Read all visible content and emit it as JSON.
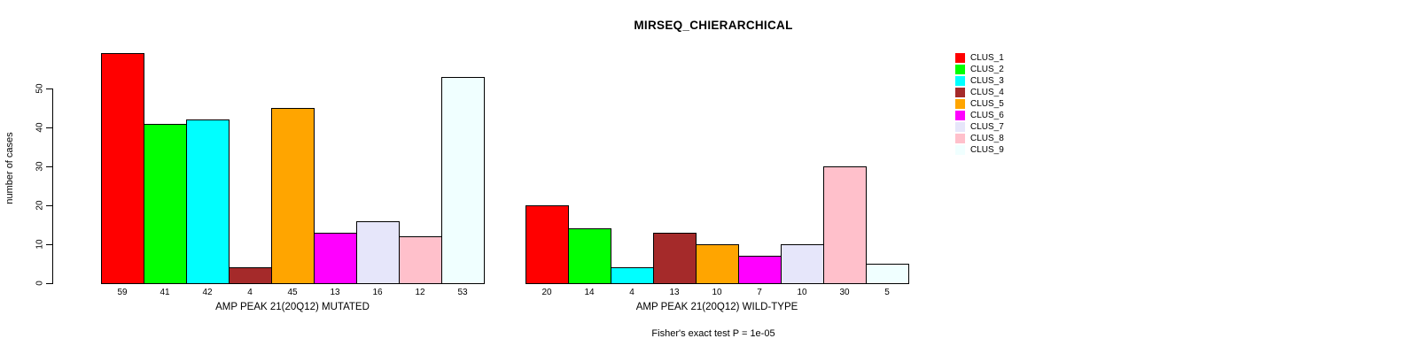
{
  "title": "MIRSEQ_CHIERARCHICAL",
  "chart_data": {
    "type": "bar",
    "title": "MIRSEQ_CHIERARCHICAL",
    "ylabel": "number of cases",
    "xlabel": "",
    "ylim": [
      0,
      50
    ],
    "yticks": [
      0,
      10,
      20,
      30,
      40,
      50
    ],
    "grid": false,
    "legend_position": "right",
    "clusters": [
      {
        "name": "CLUS_1",
        "color": "#FF0000"
      },
      {
        "name": "CLUS_2",
        "color": "#00FF00"
      },
      {
        "name": "CLUS_3",
        "color": "#00FFFF"
      },
      {
        "name": "CLUS_4",
        "color": "#A52A2A"
      },
      {
        "name": "CLUS_5",
        "color": "#FFA500"
      },
      {
        "name": "CLUS_6",
        "color": "#FF00FF"
      },
      {
        "name": "CLUS_7",
        "color": "#E6E6FA"
      },
      {
        "name": "CLUS_8",
        "color": "#FFC0CB"
      },
      {
        "name": "CLUS_9",
        "color": "#F0FFFF"
      }
    ],
    "groups": [
      {
        "xlabel": "AMP PEAK 21(20Q12) MUTATED",
        "categories": [
          "CLUS_1",
          "CLUS_2",
          "CLUS_3",
          "CLUS_4",
          "CLUS_5",
          "CLUS_6",
          "CLUS_7",
          "CLUS_8",
          "CLUS_9"
        ],
        "values": [
          59,
          41,
          42,
          4,
          45,
          13,
          16,
          12,
          53
        ],
        "bar_labels": [
          "59",
          "41",
          "42",
          "4",
          "45",
          "13",
          "16",
          "12",
          "53"
        ]
      },
      {
        "xlabel": "AMP PEAK 21(20Q12) WILD-TYPE",
        "categories": [
          "CLUS_1",
          "CLUS_2",
          "CLUS_3",
          "CLUS_4",
          "CLUS_5",
          "CLUS_6",
          "CLUS_7",
          "CLUS_8",
          "CLUS_9"
        ],
        "values": [
          20,
          14,
          4,
          13,
          10,
          7,
          10,
          30,
          5
        ],
        "bar_labels": [
          "20",
          "14",
          "4",
          "13",
          "10",
          "7",
          "10",
          "30",
          "5"
        ]
      }
    ],
    "footnote": "Fisher's exact test P = 1e-05"
  }
}
